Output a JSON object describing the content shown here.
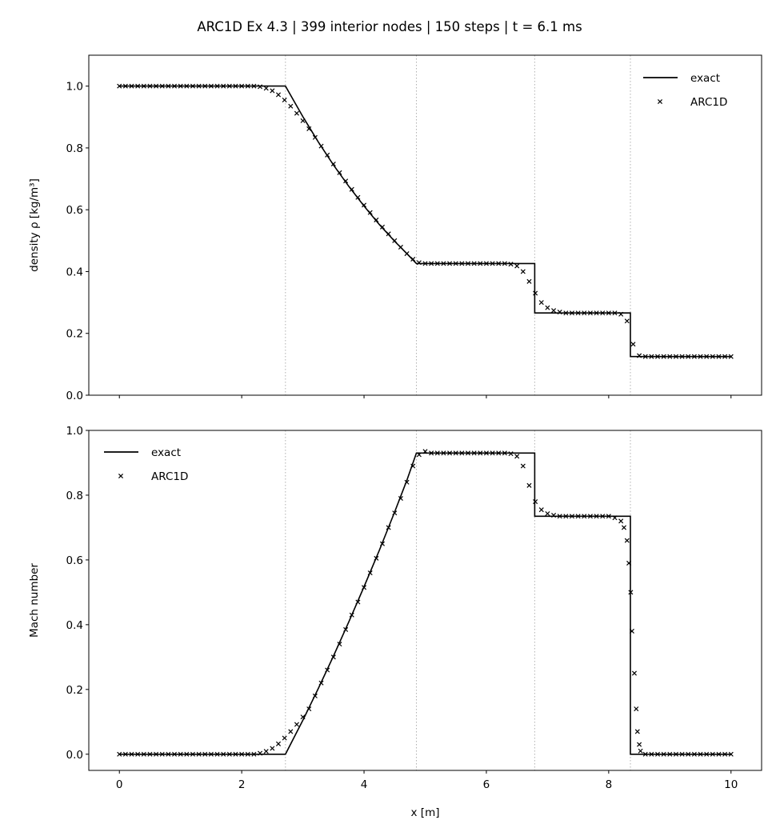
{
  "title": "ARC1D Ex 4.3  |  399 interior nodes  |  150 steps  |  t = 6.1 ms",
  "chart_data": [
    {
      "type": "line",
      "panel": "top",
      "ylabel": "density ρ [kg/m³]",
      "xlabel": "",
      "xlim": [
        -0.5,
        10.5
      ],
      "ylim": [
        0,
        1.1
      ],
      "xticks": [
        0,
        2,
        4,
        6,
        8,
        10
      ],
      "xtick_labels_shown": false,
      "yticks": [
        "0.0",
        "0.2",
        "0.4",
        "0.6",
        "0.8",
        "1.0"
      ],
      "grid": false,
      "vlines": [
        2.715,
        4.856,
        6.79,
        8.355
      ],
      "legend": {
        "placement": "top-right",
        "entries": [
          "exact",
          "ARC1D"
        ]
      },
      "series": [
        {
          "name": "exact",
          "style": "line",
          "x": [
            0,
            2.715,
            3.0,
            3.25,
            3.5,
            3.75,
            4.0,
            4.25,
            4.5,
            4.7,
            4.856,
            6.79,
            6.79,
            8.355,
            8.355,
            10
          ],
          "y": [
            1.0,
            1.0,
            0.901,
            0.82,
            0.745,
            0.676,
            0.612,
            0.552,
            0.498,
            0.458,
            0.426,
            0.426,
            0.266,
            0.266,
            0.125,
            0.125
          ]
        },
        {
          "name": "ARC1D",
          "style": "x-marker",
          "x": [
            0,
            0.1,
            0.2,
            0.3,
            0.4,
            0.5,
            0.6,
            0.7,
            0.8,
            0.9,
            1.0,
            1.1,
            1.2,
            1.3,
            1.4,
            1.5,
            1.6,
            1.7,
            1.8,
            1.9,
            2.0,
            2.1,
            2.2,
            2.3,
            2.4,
            2.5,
            2.6,
            2.7,
            2.8,
            2.9,
            3.0,
            3.1,
            3.2,
            3.3,
            3.4,
            3.5,
            3.6,
            3.7,
            3.8,
            3.9,
            4.0,
            4.1,
            4.2,
            4.3,
            4.4,
            4.5,
            4.6,
            4.7,
            4.8,
            4.9,
            5.0,
            5.1,
            5.2,
            5.3,
            5.4,
            5.5,
            5.6,
            5.7,
            5.8,
            5.9,
            6.0,
            6.1,
            6.2,
            6.3,
            6.4,
            6.5,
            6.6,
            6.7,
            6.8,
            6.9,
            7.0,
            7.1,
            7.2,
            7.3,
            7.4,
            7.5,
            7.6,
            7.7,
            7.8,
            7.9,
            8.0,
            8.1,
            8.2,
            8.3,
            8.4,
            8.5,
            8.6,
            8.7,
            8.8,
            8.9,
            9.0,
            9.1,
            9.2,
            9.3,
            9.4,
            9.5,
            9.6,
            9.7,
            9.8,
            9.9,
            10.0
          ],
          "y": [
            1,
            1,
            1,
            1,
            1,
            1,
            1,
            1,
            1,
            1,
            1,
            1,
            1,
            1,
            1,
            1,
            1,
            1,
            1,
            1,
            1,
            1,
            1,
            0.998,
            0.993,
            0.985,
            0.972,
            0.955,
            0.935,
            0.912,
            0.888,
            0.862,
            0.834,
            0.806,
            0.777,
            0.748,
            0.72,
            0.693,
            0.666,
            0.64,
            0.615,
            0.591,
            0.567,
            0.544,
            0.522,
            0.5,
            0.479,
            0.458,
            0.44,
            0.429,
            0.426,
            0.426,
            0.426,
            0.426,
            0.426,
            0.426,
            0.426,
            0.426,
            0.426,
            0.426,
            0.426,
            0.426,
            0.426,
            0.426,
            0.424,
            0.418,
            0.4,
            0.368,
            0.33,
            0.3,
            0.283,
            0.274,
            0.269,
            0.266,
            0.266,
            0.266,
            0.266,
            0.266,
            0.266,
            0.266,
            0.266,
            0.266,
            0.262,
            0.24,
            0.165,
            0.128,
            0.125,
            0.125,
            0.125,
            0.125,
            0.125,
            0.125,
            0.125,
            0.125,
            0.125,
            0.125,
            0.125,
            0.125,
            0.125,
            0.125,
            0.125
          ]
        }
      ]
    },
    {
      "type": "line",
      "panel": "bottom",
      "ylabel": "Mach number",
      "xlabel": "x [m]",
      "xlim": [
        -0.5,
        10.5
      ],
      "ylim": [
        -0.05,
        1.0
      ],
      "xticks": [
        0,
        2,
        4,
        6,
        8,
        10
      ],
      "xtick_labels": [
        "0",
        "2",
        "4",
        "6",
        "8",
        "10"
      ],
      "yticks": [
        "0.0",
        "0.2",
        "0.4",
        "0.6",
        "0.8",
        "1.0"
      ],
      "grid": false,
      "vlines": [
        2.715,
        4.856,
        6.79,
        8.355
      ],
      "legend": {
        "placement": "top-left",
        "entries": [
          "exact",
          "ARC1D"
        ]
      },
      "series": [
        {
          "name": "exact",
          "style": "line",
          "x": [
            0,
            2.715,
            3.0,
            3.25,
            3.5,
            3.75,
            4.0,
            4.25,
            4.5,
            4.7,
            4.856,
            6.79,
            6.79,
            8.355,
            8.355,
            10
          ],
          "y": [
            0,
            0,
            0.105,
            0.202,
            0.303,
            0.408,
            0.517,
            0.63,
            0.748,
            0.846,
            0.93,
            0.93,
            0.735,
            0.735,
            0,
            0
          ]
        },
        {
          "name": "ARC1D",
          "style": "x-marker",
          "x": [
            0,
            0.1,
            0.2,
            0.3,
            0.4,
            0.5,
            0.6,
            0.7,
            0.8,
            0.9,
            1.0,
            1.1,
            1.2,
            1.3,
            1.4,
            1.5,
            1.6,
            1.7,
            1.8,
            1.9,
            2.0,
            2.1,
            2.2,
            2.3,
            2.4,
            2.5,
            2.6,
            2.7,
            2.8,
            2.9,
            3.0,
            3.1,
            3.2,
            3.3,
            3.4,
            3.5,
            3.6,
            3.7,
            3.8,
            3.9,
            4.0,
            4.1,
            4.2,
            4.3,
            4.4,
            4.5,
            4.6,
            4.7,
            4.8,
            4.9,
            5.0,
            5.1,
            5.2,
            5.3,
            5.4,
            5.5,
            5.6,
            5.7,
            5.8,
            5.9,
            6.0,
            6.1,
            6.2,
            6.3,
            6.4,
            6.5,
            6.6,
            6.7,
            6.8,
            6.9,
            7.0,
            7.1,
            7.2,
            7.3,
            7.4,
            7.5,
            7.6,
            7.7,
            7.8,
            7.9,
            8.0,
            8.1,
            8.2,
            8.25,
            8.3,
            8.33,
            8.36,
            8.38,
            8.42,
            8.45,
            8.47,
            8.5,
            8.52,
            8.6,
            8.7,
            8.8,
            8.9,
            9.0,
            9.1,
            9.2,
            9.3,
            9.4,
            9.5,
            9.6,
            9.7,
            9.8,
            9.9,
            10.0
          ],
          "y": [
            0,
            0,
            0,
            0,
            0,
            0,
            0,
            0,
            0,
            0,
            0,
            0,
            0,
            0,
            0,
            0,
            0,
            0,
            0,
            0,
            0,
            0,
            0,
            0.003,
            0.009,
            0.018,
            0.032,
            0.05,
            0.07,
            0.092,
            0.115,
            0.14,
            0.18,
            0.22,
            0.26,
            0.3,
            0.34,
            0.385,
            0.43,
            0.47,
            0.515,
            0.56,
            0.605,
            0.65,
            0.7,
            0.745,
            0.79,
            0.84,
            0.89,
            0.925,
            0.935,
            0.93,
            0.93,
            0.93,
            0.93,
            0.93,
            0.93,
            0.93,
            0.93,
            0.93,
            0.93,
            0.93,
            0.93,
            0.93,
            0.928,
            0.92,
            0.89,
            0.83,
            0.78,
            0.755,
            0.743,
            0.738,
            0.735,
            0.735,
            0.735,
            0.735,
            0.735,
            0.735,
            0.735,
            0.735,
            0.735,
            0.73,
            0.72,
            0.7,
            0.66,
            0.59,
            0.5,
            0.38,
            0.25,
            0.14,
            0.07,
            0.03,
            0.01,
            0,
            0,
            0,
            0,
            0,
            0,
            0,
            0,
            0,
            0,
            0,
            0,
            0,
            0,
            0
          ]
        }
      ]
    }
  ]
}
